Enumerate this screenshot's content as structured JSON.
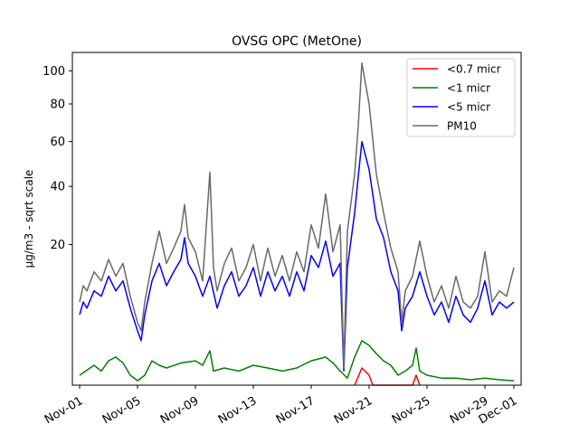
{
  "chart_data": {
    "type": "line",
    "title": "OVSG OPC (MetOne)",
    "xlabel": "",
    "ylabel": "µg/m3 - sqrt scale",
    "y_scale": "sqrt",
    "ylim": [
      0,
      112
    ],
    "xlim": [
      "2024-10-31T12:00",
      "2024-12-01T12:00"
    ],
    "grid": false,
    "legend_position": "top-right",
    "x_ticks": [
      {
        "date": "2024-11-01",
        "label": "Nov-01"
      },
      {
        "date": "2024-11-05",
        "label": "Nov-05"
      },
      {
        "date": "2024-11-09",
        "label": "Nov-09"
      },
      {
        "date": "2024-11-13",
        "label": "Nov-13"
      },
      {
        "date": "2024-11-17",
        "label": "Nov-17"
      },
      {
        "date": "2024-11-21",
        "label": "Nov-21"
      },
      {
        "date": "2024-11-25",
        "label": "Nov-25"
      },
      {
        "date": "2024-11-29",
        "label": "Nov-29"
      },
      {
        "date": "2024-12-01",
        "label": "Dec-01"
      }
    ],
    "y_ticks": [
      {
        "value": 20,
        "label": "20"
      },
      {
        "value": 40,
        "label": "40"
      },
      {
        "value": 60,
        "label": "60"
      },
      {
        "value": 80,
        "label": "80"
      },
      {
        "value": 100,
        "label": "100"
      }
    ],
    "series": [
      {
        "name": "<0.7 micr",
        "color": "#ff0000",
        "points": [
          [
            "2024-11-20T00:00",
            0
          ],
          [
            "2024-11-20T12:00",
            0.3
          ],
          [
            "2024-11-21T00:00",
            0.1
          ],
          [
            "2024-11-21T06:00",
            0
          ],
          [
            "2024-11-24T00:00",
            0
          ],
          [
            "2024-11-24T06:00",
            0.1
          ],
          [
            "2024-11-24T12:00",
            0
          ]
        ]
      },
      {
        "name": "<1 micr",
        "color": "#008000",
        "points": [
          [
            "2024-11-01T00:00",
            0.1
          ],
          [
            "2024-11-02T00:00",
            0.4
          ],
          [
            "2024-11-02T12:00",
            0.2
          ],
          [
            "2024-11-03T00:00",
            0.6
          ],
          [
            "2024-11-03T12:00",
            0.8
          ],
          [
            "2024-11-04T00:00",
            0.5
          ],
          [
            "2024-11-04T12:00",
            0.1
          ],
          [
            "2024-11-05T00:00",
            0.02
          ],
          [
            "2024-11-05T12:00",
            0.1
          ],
          [
            "2024-11-06T00:00",
            0.6
          ],
          [
            "2024-11-06T12:00",
            0.4
          ],
          [
            "2024-11-07T00:00",
            0.3
          ],
          [
            "2024-11-08T00:00",
            0.5
          ],
          [
            "2024-11-09T00:00",
            0.6
          ],
          [
            "2024-11-09T12:00",
            0.4
          ],
          [
            "2024-11-10T00:00",
            1.2
          ],
          [
            "2024-11-10T06:00",
            0.2
          ],
          [
            "2024-11-11T00:00",
            0.3
          ],
          [
            "2024-11-12T00:00",
            0.2
          ],
          [
            "2024-11-13T00:00",
            0.4
          ],
          [
            "2024-11-14T00:00",
            0.3
          ],
          [
            "2024-11-15T00:00",
            0.2
          ],
          [
            "2024-11-16T00:00",
            0.3
          ],
          [
            "2024-11-17T00:00",
            0.6
          ],
          [
            "2024-11-18T00:00",
            0.8
          ],
          [
            "2024-11-18T12:00",
            0.5
          ],
          [
            "2024-11-19T00:00",
            0.2
          ],
          [
            "2024-11-19T12:00",
            0.05
          ],
          [
            "2024-11-20T00:00",
            0.8
          ],
          [
            "2024-11-20T12:00",
            2.0
          ],
          [
            "2024-11-21T00:00",
            1.6
          ],
          [
            "2024-11-21T12:00",
            1.0
          ],
          [
            "2024-11-22T00:00",
            0.6
          ],
          [
            "2024-11-22T12:00",
            0.4
          ],
          [
            "2024-11-23T00:00",
            0.1
          ],
          [
            "2024-11-23T12:00",
            0.2
          ],
          [
            "2024-11-24T00:00",
            0.4
          ],
          [
            "2024-11-24T06:00",
            1.4
          ],
          [
            "2024-11-24T12:00",
            0.2
          ],
          [
            "2024-11-25T00:00",
            0.1
          ],
          [
            "2024-11-26T00:00",
            0.05
          ],
          [
            "2024-11-27T00:00",
            0.05
          ],
          [
            "2024-11-28T00:00",
            0.03
          ],
          [
            "2024-11-29T00:00",
            0.05
          ],
          [
            "2024-11-30T00:00",
            0.03
          ],
          [
            "2024-12-01T00:00",
            0.02
          ]
        ]
      },
      {
        "name": "<5 micr",
        "color": "#0000ff",
        "points": [
          [
            "2024-11-01T00:00",
            5
          ],
          [
            "2024-11-01T06:00",
            7
          ],
          [
            "2024-11-01T12:00",
            6
          ],
          [
            "2024-11-02T00:00",
            9
          ],
          [
            "2024-11-02T12:00",
            8
          ],
          [
            "2024-11-03T00:00",
            12
          ],
          [
            "2024-11-03T12:00",
            9
          ],
          [
            "2024-11-04T00:00",
            11
          ],
          [
            "2024-11-04T12:00",
            6
          ],
          [
            "2024-11-05T00:00",
            3
          ],
          [
            "2024-11-05T06:00",
            2
          ],
          [
            "2024-11-05T12:00",
            5
          ],
          [
            "2024-11-06T00:00",
            11
          ],
          [
            "2024-11-06T12:00",
            15
          ],
          [
            "2024-11-07T00:00",
            10
          ],
          [
            "2024-11-07T12:00",
            13
          ],
          [
            "2024-11-08T00:00",
            16
          ],
          [
            "2024-11-08T06:00",
            22
          ],
          [
            "2024-11-08T12:00",
            15
          ],
          [
            "2024-11-09T00:00",
            12
          ],
          [
            "2024-11-09T12:00",
            8
          ],
          [
            "2024-11-10T00:00",
            12
          ],
          [
            "2024-11-10T12:00",
            6
          ],
          [
            "2024-11-11T00:00",
            10
          ],
          [
            "2024-11-11T12:00",
            13
          ],
          [
            "2024-11-12T00:00",
            8
          ],
          [
            "2024-11-12T12:00",
            10
          ],
          [
            "2024-11-13T00:00",
            14
          ],
          [
            "2024-11-13T12:00",
            8
          ],
          [
            "2024-11-14T00:00",
            13
          ],
          [
            "2024-11-14T12:00",
            9
          ],
          [
            "2024-11-15T00:00",
            12
          ],
          [
            "2024-11-15T12:00",
            8
          ],
          [
            "2024-11-16T00:00",
            13
          ],
          [
            "2024-11-16T12:00",
            9
          ],
          [
            "2024-11-17T00:00",
            17
          ],
          [
            "2024-11-17T12:00",
            14
          ],
          [
            "2024-11-18T00:00",
            21
          ],
          [
            "2024-11-18T12:00",
            12
          ],
          [
            "2024-11-19T00:00",
            15
          ],
          [
            "2024-11-19T06:00",
            0.2
          ],
          [
            "2024-11-19T12:00",
            14
          ],
          [
            "2024-11-20T00:00",
            30
          ],
          [
            "2024-11-20T06:00",
            44
          ],
          [
            "2024-11-20T12:00",
            60
          ],
          [
            "2024-11-21T00:00",
            47
          ],
          [
            "2024-11-21T12:00",
            28
          ],
          [
            "2024-11-22T00:00",
            22
          ],
          [
            "2024-11-22T12:00",
            13
          ],
          [
            "2024-11-23T00:00",
            9
          ],
          [
            "2024-11-23T06:00",
            3
          ],
          [
            "2024-11-23T12:00",
            6
          ],
          [
            "2024-11-24T00:00",
            8
          ],
          [
            "2024-11-24T12:00",
            13
          ],
          [
            "2024-11-25T00:00",
            8
          ],
          [
            "2024-11-25T12:00",
            5
          ],
          [
            "2024-11-26T00:00",
            7
          ],
          [
            "2024-11-26T12:00",
            4
          ],
          [
            "2024-11-27T00:00",
            8
          ],
          [
            "2024-11-27T12:00",
            5
          ],
          [
            "2024-11-28T00:00",
            4
          ],
          [
            "2024-11-28T12:00",
            6
          ],
          [
            "2024-11-29T00:00",
            11
          ],
          [
            "2024-11-29T12:00",
            5
          ],
          [
            "2024-11-30T00:00",
            7
          ],
          [
            "2024-11-30T12:00",
            6
          ],
          [
            "2024-12-01T00:00",
            7
          ]
        ]
      },
      {
        "name": "PM10",
        "color": "#696969",
        "points": [
          [
            "2024-11-01T00:00",
            7
          ],
          [
            "2024-11-01T06:00",
            10
          ],
          [
            "2024-11-01T12:00",
            9
          ],
          [
            "2024-11-02T00:00",
            13
          ],
          [
            "2024-11-02T12:00",
            11
          ],
          [
            "2024-11-03T00:00",
            16
          ],
          [
            "2024-11-03T12:00",
            12
          ],
          [
            "2024-11-04T00:00",
            15
          ],
          [
            "2024-11-04T12:00",
            8
          ],
          [
            "2024-11-05T00:00",
            4
          ],
          [
            "2024-11-05T06:00",
            3
          ],
          [
            "2024-11-05T12:00",
            7
          ],
          [
            "2024-11-06T00:00",
            15
          ],
          [
            "2024-11-06T12:00",
            24
          ],
          [
            "2024-11-07T00:00",
            15
          ],
          [
            "2024-11-07T12:00",
            19
          ],
          [
            "2024-11-08T00:00",
            24
          ],
          [
            "2024-11-08T06:00",
            33
          ],
          [
            "2024-11-08T12:00",
            22
          ],
          [
            "2024-11-09T00:00",
            18
          ],
          [
            "2024-11-09T12:00",
            11
          ],
          [
            "2024-11-10T00:00",
            46
          ],
          [
            "2024-11-10T06:00",
            14
          ],
          [
            "2024-11-10T12:00",
            9
          ],
          [
            "2024-11-11T00:00",
            15
          ],
          [
            "2024-11-11T12:00",
            19
          ],
          [
            "2024-11-12T00:00",
            11
          ],
          [
            "2024-11-12T12:00",
            14
          ],
          [
            "2024-11-13T00:00",
            20
          ],
          [
            "2024-11-13T12:00",
            11
          ],
          [
            "2024-11-14T00:00",
            19
          ],
          [
            "2024-11-14T12:00",
            12
          ],
          [
            "2024-11-15T00:00",
            17
          ],
          [
            "2024-11-15T12:00",
            11
          ],
          [
            "2024-11-16T00:00",
            18
          ],
          [
            "2024-11-16T12:00",
            13
          ],
          [
            "2024-11-17T00:00",
            26
          ],
          [
            "2024-11-17T12:00",
            19
          ],
          [
            "2024-11-18T00:00",
            37
          ],
          [
            "2024-11-18T12:00",
            18
          ],
          [
            "2024-11-19T00:00",
            26
          ],
          [
            "2024-11-19T06:00",
            0.3
          ],
          [
            "2024-11-19T12:00",
            24
          ],
          [
            "2024-11-20T00:00",
            45
          ],
          [
            "2024-11-20T06:00",
            68
          ],
          [
            "2024-11-20T12:00",
            105
          ],
          [
            "2024-11-21T00:00",
            80
          ],
          [
            "2024-11-21T12:00",
            45
          ],
          [
            "2024-11-22T00:00",
            30
          ],
          [
            "2024-11-22T12:00",
            19
          ],
          [
            "2024-11-23T00:00",
            13
          ],
          [
            "2024-11-23T06:00",
            4
          ],
          [
            "2024-11-23T12:00",
            9
          ],
          [
            "2024-11-24T00:00",
            12
          ],
          [
            "2024-11-24T12:00",
            21
          ],
          [
            "2024-11-25T00:00",
            12
          ],
          [
            "2024-11-25T12:00",
            7
          ],
          [
            "2024-11-26T00:00",
            10
          ],
          [
            "2024-11-26T12:00",
            6
          ],
          [
            "2024-11-27T00:00",
            12
          ],
          [
            "2024-11-27T12:00",
            7
          ],
          [
            "2024-11-28T00:00",
            6
          ],
          [
            "2024-11-28T12:00",
            8
          ],
          [
            "2024-11-29T00:00",
            18
          ],
          [
            "2024-11-29T12:00",
            7
          ],
          [
            "2024-11-30T00:00",
            9
          ],
          [
            "2024-11-30T12:00",
            8
          ],
          [
            "2024-12-01T00:00",
            14
          ]
        ]
      }
    ]
  }
}
